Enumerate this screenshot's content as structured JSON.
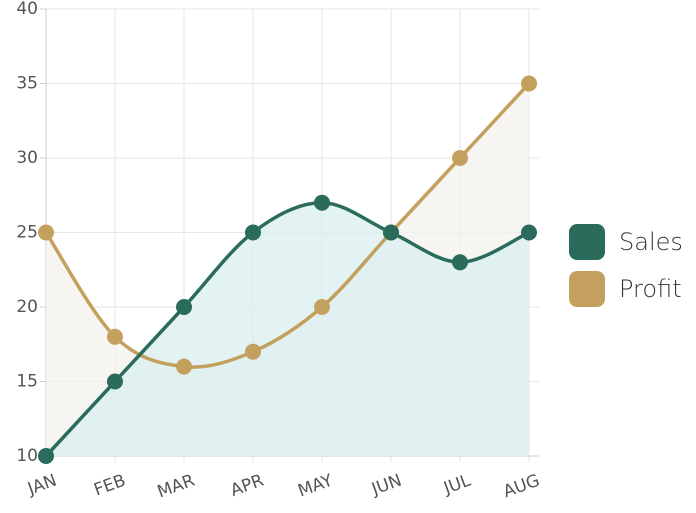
{
  "chart_data": {
    "type": "line",
    "categories": [
      "JAN",
      "FEB",
      "MAR",
      "APR",
      "MAY",
      "JUN",
      "JUL",
      "AUG"
    ],
    "series": [
      {
        "name": "Sales",
        "color": "#2a6b5c",
        "area_color": "#d9eff0",
        "values": [
          10,
          15,
          20,
          25,
          27,
          25,
          23,
          25
        ]
      },
      {
        "name": "Profit",
        "color": "#c4a05f",
        "area_color": "#f3f1ee",
        "values": [
          25,
          18,
          16,
          17,
          20,
          25,
          30,
          35
        ]
      }
    ],
    "ylim": [
      10,
      40
    ],
    "yticks": [
      10,
      15,
      20,
      25,
      30,
      35,
      40
    ],
    "grid": true,
    "smooth": true,
    "legend": "right"
  }
}
